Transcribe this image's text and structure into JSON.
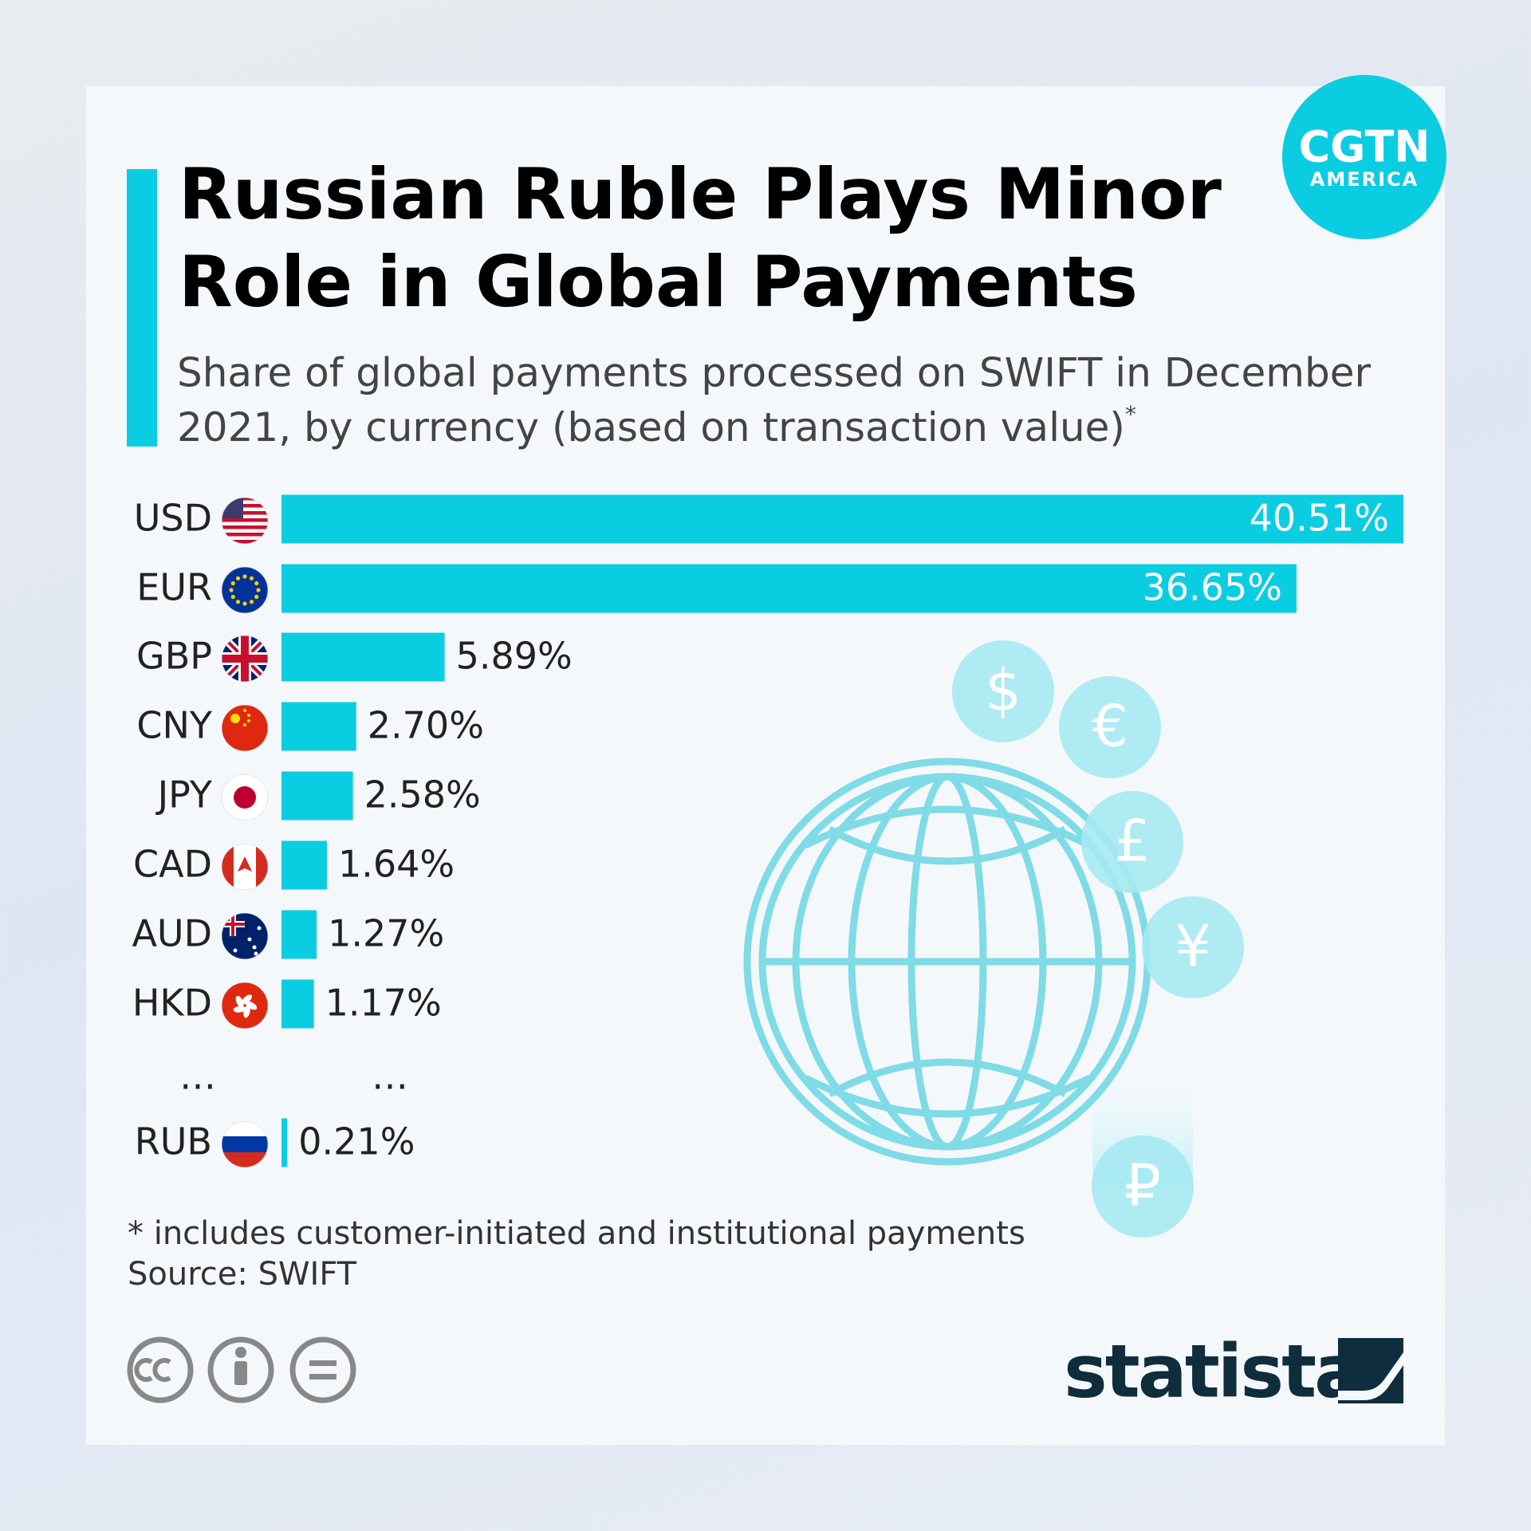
{
  "chart_data": {
    "type": "bar",
    "orientation": "horizontal",
    "title": [
      "Russian Ruble Plays Minor",
      "Role in Global Payments"
    ],
    "subtitle": [
      "Share of global payments processed on SWIFT in December",
      "2021, by currency (based on transaction value)"
    ],
    "subtitle_note": "*",
    "categories": [
      "USD",
      "EUR",
      "GBP",
      "CNY",
      "JPY",
      "CAD",
      "AUD",
      "HKD",
      "…",
      "RUB"
    ],
    "values": [
      40.51,
      36.65,
      5.89,
      2.7,
      2.58,
      1.64,
      1.27,
      1.17,
      null,
      0.21
    ],
    "value_labels": [
      "40.51%",
      "36.65%",
      "5.89%",
      "2.70%",
      "2.58%",
      "1.64%",
      "1.27%",
      "1.17%",
      "…",
      "0.21%"
    ],
    "color": "#0bcde2",
    "footnote": "* includes customer-initiated and institutional payments",
    "source": "Source: SWIFT",
    "logo": {
      "name": "CGTN",
      "sub": "AMERICA"
    },
    "brand": "statista",
    "illustration": {
      "symbols": [
        "$",
        "€",
        "£",
        "¥",
        "₽"
      ]
    }
  }
}
